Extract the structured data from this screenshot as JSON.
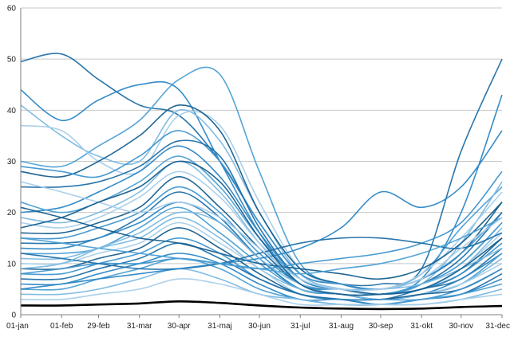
{
  "chart_data": {
    "type": "line",
    "title": "",
    "xlabel": "",
    "ylabel": "",
    "ylim": [
      0,
      60
    ],
    "yticks": [
      0,
      10,
      20,
      30,
      40,
      50,
      60
    ],
    "xlim": [
      0,
      365
    ],
    "xtick_labels": [
      "01-jan",
      "01-feb",
      "29-feb",
      "31-mar",
      "30-apr",
      "31-maj",
      "30-jun",
      "31-jul",
      "31-aug",
      "30-sep",
      "31-okt",
      "30-nov",
      "31-dec"
    ],
    "xtick_days": [
      0,
      31,
      59,
      90,
      120,
      151,
      181,
      212,
      243,
      273,
      304,
      334,
      365
    ],
    "grid": true,
    "legend": "none",
    "colors": {
      "palette": [
        "#1f6fa8",
        "#2b86c4",
        "#4a9fd4",
        "#7bb8e0",
        "#a6cde9",
        "#155e8e",
        "#3d95cf"
      ],
      "highlight": "#000000",
      "gridline": "#c8c8c8",
      "axis": "#7f7f7f"
    },
    "highlight_series": {
      "x": [
        0,
        31,
        59,
        90,
        120,
        151,
        181,
        212,
        243,
        273,
        304,
        334,
        365
      ],
      "values": [
        1.8,
        1.8,
        2.0,
        2.2,
        2.6,
        2.3,
        1.8,
        1.4,
        1.2,
        1.1,
        1.2,
        1.5,
        1.7
      ]
    },
    "series_x": [
      0,
      31,
      59,
      90,
      120,
      151,
      181,
      212,
      243,
      273,
      304,
      334,
      365
    ],
    "series": [
      {
        "values": [
          49.5,
          51,
          46,
          41,
          39,
          30,
          18,
          8,
          6,
          6,
          9,
          32,
          50
        ]
      },
      {
        "values": [
          44,
          38,
          42,
          45,
          44,
          30,
          16,
          6,
          5,
          4,
          7,
          20,
          43
        ]
      },
      {
        "values": [
          30,
          29,
          33,
          38,
          46,
          47,
          28,
          10,
          6,
          5,
          8,
          17,
          25
        ]
      },
      {
        "values": [
          41,
          35,
          31,
          30,
          40,
          34,
          20,
          8,
          5,
          4,
          6,
          14,
          26
        ]
      },
      {
        "values": [
          37,
          36,
          30,
          28,
          39,
          37,
          22,
          9,
          6,
          5,
          8,
          15,
          24
        ]
      },
      {
        "values": [
          28,
          27,
          30,
          35,
          41,
          36,
          20,
          9,
          6,
          5,
          7,
          12,
          22
        ]
      },
      {
        "values": [
          29,
          28,
          27,
          31,
          36,
          30,
          18,
          8,
          6,
          5,
          7,
          12,
          20
        ]
      },
      {
        "values": [
          25,
          25,
          26,
          29,
          34,
          31,
          17,
          7,
          5,
          4,
          6,
          11,
          20
        ]
      },
      {
        "values": [
          20,
          21,
          24,
          28,
          33,
          27,
          16,
          7,
          5,
          4,
          6,
          10,
          18
        ]
      },
      {
        "values": [
          22,
          20,
          22,
          26,
          31,
          25,
          15,
          7,
          5,
          4,
          6,
          10,
          18
        ]
      },
      {
        "values": [
          19,
          18,
          20,
          24,
          30,
          24,
          14,
          6,
          5,
          4,
          5,
          9,
          17
        ]
      },
      {
        "values": [
          18,
          17,
          19,
          23,
          28,
          23,
          14,
          7,
          5,
          4,
          5,
          9,
          16
        ]
      },
      {
        "values": [
          16,
          16,
          18,
          21,
          27,
          21,
          13,
          6,
          5,
          4,
          5,
          8,
          15
        ]
      },
      {
        "values": [
          15,
          15,
          17,
          20,
          25,
          20,
          12,
          6,
          4,
          4,
          5,
          8,
          14
        ]
      },
      {
        "values": [
          14,
          14,
          15,
          19,
          24,
          19,
          11,
          5,
          4,
          3,
          5,
          7,
          13
        ]
      },
      {
        "values": [
          13,
          13,
          15,
          18,
          22,
          18,
          11,
          5,
          4,
          3,
          4,
          7,
          12
        ]
      },
      {
        "values": [
          12,
          12,
          13,
          17,
          21,
          16,
          10,
          5,
          4,
          3,
          4,
          6,
          12
        ]
      },
      {
        "values": [
          11,
          11,
          13,
          15,
          19,
          15,
          9,
          5,
          4,
          3,
          4,
          6,
          11
        ]
      },
      {
        "values": [
          10,
          10,
          12,
          14,
          18,
          14,
          9,
          4,
          3,
          3,
          4,
          6,
          10
        ]
      },
      {
        "values": [
          9,
          9,
          11,
          13,
          17,
          13,
          8,
          4,
          3,
          3,
          4,
          5,
          9
        ]
      },
      {
        "values": [
          8,
          8,
          10,
          12,
          15,
          12,
          7,
          4,
          3,
          3,
          3,
          5,
          9
        ]
      },
      {
        "values": [
          7,
          7,
          9,
          11,
          14,
          11,
          7,
          4,
          3,
          2,
          3,
          4,
          8
        ]
      },
      {
        "values": [
          6,
          6,
          8,
          10,
          12,
          10,
          6,
          3,
          3,
          2,
          3,
          4,
          7
        ]
      },
      {
        "values": [
          5,
          5,
          7,
          9,
          11,
          9,
          5,
          3,
          2,
          2,
          3,
          4,
          6
        ]
      },
      {
        "values": [
          4,
          4,
          5,
          7,
          9,
          7,
          4,
          3,
          2,
          2,
          2,
          3,
          5
        ]
      },
      {
        "values": [
          3,
          3,
          4,
          5,
          7,
          6,
          4,
          2,
          2,
          2,
          2,
          3,
          4
        ]
      },
      {
        "values": [
          21,
          19,
          17,
          15,
          14,
          12,
          10,
          9,
          8,
          7,
          9,
          14,
          22
        ]
      },
      {
        "values": [
          8,
          9,
          10,
          10,
          11,
          10,
          9,
          10,
          11,
          12,
          14,
          18,
          28
        ]
      },
      {
        "values": [
          12,
          11,
          10,
          9,
          9,
          10,
          12,
          14,
          15,
          15,
          14,
          13,
          16
        ]
      },
      {
        "values": [
          5,
          6,
          7,
          8,
          9,
          10,
          11,
          13,
          17,
          24,
          21,
          25,
          36
        ]
      },
      {
        "values": [
          15,
          14,
          13,
          12,
          11,
          10,
          9,
          8,
          9,
          10,
          12,
          15,
          19
        ]
      },
      {
        "values": [
          9,
          10,
          13,
          16,
          20,
          18,
          11,
          6,
          5,
          5,
          6,
          9,
          13
        ]
      },
      {
        "values": [
          26,
          24,
          22,
          20,
          22,
          19,
          13,
          7,
          5,
          5,
          7,
          13,
          19
        ]
      },
      {
        "values": [
          17,
          19,
          22,
          25,
          30,
          26,
          15,
          6,
          4,
          4,
          5,
          9,
          15
        ]
      }
    ]
  }
}
